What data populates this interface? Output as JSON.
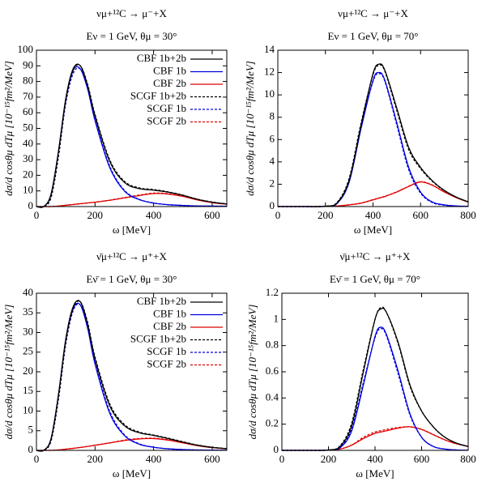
{
  "chart_data": [
    {
      "type": "line",
      "title": "νμ+¹²C → μ⁻+X",
      "subtitle": "Eν = 1 GeV, θμ = 30°",
      "xlabel": "ω [MeV]",
      "ylabel": "dσ/d cosθμ dTμ [10⁻¹⁵fm²/MeV]",
      "x": [
        0,
        25,
        50,
        75,
        100,
        125,
        150,
        175,
        200,
        250,
        300,
        350,
        400,
        450,
        500,
        550,
        600,
        650
      ],
      "xlim": [
        0,
        650
      ],
      "xticks": [
        0,
        200,
        400,
        600
      ],
      "ylim": [
        0,
        100
      ],
      "yticks": [
        0,
        10,
        20,
        30,
        40,
        50,
        60,
        70,
        80,
        90,
        100
      ],
      "legend": "upper right",
      "series": [
        {
          "name": "CBF 1b+2b",
          "color": "#000000",
          "dash": false,
          "values": [
            0,
            0,
            8,
            35,
            69,
            88,
            90,
            77,
            58,
            29,
            15.5,
            11.5,
            10.5,
            9.2,
            7.2,
            4.6,
            2.8,
            1.7
          ]
        },
        {
          "name": "CBF 1b",
          "color": "#0000e0",
          "dash": false,
          "values": [
            0,
            0,
            8,
            35,
            68,
            87,
            88,
            75,
            55,
            25,
            10,
            4.5,
            2.2,
            1.2,
            0.7,
            0.4,
            0.3,
            0.2
          ]
        },
        {
          "name": "CBF 2b",
          "color": "#e00000",
          "dash": false,
          "values": [
            0,
            0,
            0,
            0.3,
            0.8,
            1.3,
            1.8,
            2.3,
            2.8,
            4,
            5.5,
            7,
            8.3,
            8,
            6.5,
            4.2,
            2.5,
            1.5
          ]
        },
        {
          "name": "SCGF 1b+2b",
          "color": "#000000",
          "dash": true,
          "values": [
            0,
            0,
            6,
            32,
            67,
            87,
            90,
            78,
            59,
            30,
            16.2,
            12,
            10.9,
            9.4,
            7.3,
            4.7,
            2.9,
            1.7
          ]
        },
        {
          "name": "SCGF 1b",
          "color": "#0000e0",
          "dash": true,
          "values": [
            0,
            0,
            6,
            32,
            66,
            85,
            88,
            76,
            56,
            26,
            10.5,
            4.7,
            2.3,
            1.2,
            0.7,
            0.4,
            0.3,
            0.2
          ]
        },
        {
          "name": "SCGF 2b",
          "color": "#e00000",
          "dash": true,
          "values": [
            0,
            0,
            0,
            0.3,
            0.8,
            1.3,
            1.8,
            2.3,
            2.8,
            4.1,
            5.7,
            7.3,
            8.6,
            8.2,
            6.6,
            4.3,
            2.6,
            1.5
          ]
        }
      ]
    },
    {
      "type": "line",
      "title": "νμ+¹²C → μ⁻+X",
      "subtitle": "Eν = 1 GeV, θμ = 70°",
      "xlabel": "ω [MeV]",
      "ylabel": "dσ/d cosθμ dTμ [10⁻¹⁵fm²/MeV]",
      "x": [
        0,
        100,
        200,
        250,
        300,
        350,
        400,
        425,
        450,
        500,
        550,
        600,
        650,
        700,
        750,
        800
      ],
      "xlim": [
        0,
        800
      ],
      "xticks": [
        0,
        200,
        400,
        600,
        800
      ],
      "ylim": [
        0,
        14
      ],
      "yticks": [
        0,
        2,
        4,
        6,
        8,
        10,
        12,
        14
      ],
      "series": [
        {
          "color": "#000000",
          "dash": false,
          "values": [
            0,
            0,
            0.03,
            0.35,
            2.35,
            7.3,
            11.9,
            12.75,
            12.2,
            8.8,
            5.3,
            3.5,
            2.3,
            1.45,
            0.85,
            0.42
          ]
        },
        {
          "color": "#0000e0",
          "dash": false,
          "values": [
            0,
            0,
            0.02,
            0.3,
            2.2,
            7,
            11.3,
            12,
            11.3,
            7.5,
            3.5,
            1.3,
            0.4,
            0.15,
            0.05,
            0.02
          ]
        },
        {
          "color": "#e00000",
          "dash": false,
          "values": [
            0,
            0,
            0.01,
            0.05,
            0.15,
            0.3,
            0.6,
            0.75,
            0.9,
            1.3,
            1.8,
            2.2,
            1.9,
            1.3,
            0.8,
            0.4
          ]
        },
        {
          "color": "#000000",
          "dash": true,
          "values": [
            0,
            0,
            0.03,
            0.4,
            2.55,
            7.5,
            11.8,
            12.65,
            12.1,
            8.6,
            5.1,
            3.4,
            2.25,
            1.42,
            0.84,
            0.42
          ]
        },
        {
          "color": "#0000e0",
          "dash": true,
          "values": [
            0,
            0,
            0.02,
            0.35,
            2.4,
            7.2,
            11.2,
            11.9,
            11.2,
            7.3,
            3.3,
            1.2,
            0.35,
            0.12,
            0.04,
            0.02
          ]
        },
        {
          "color": "#e00000",
          "dash": true,
          "values": [
            0,
            0,
            0.01,
            0.05,
            0.16,
            0.32,
            0.62,
            0.77,
            0.92,
            1.32,
            1.82,
            2.22,
            1.92,
            1.32,
            0.81,
            0.4
          ]
        }
      ]
    },
    {
      "type": "line",
      "title": "ν̄μ+¹²C → μ⁺+X",
      "subtitle": "Eν̄ = 1 GeV, θμ = 30°",
      "xlabel": "ω [MeV]",
      "ylabel": "dσ/d cosθμ dTμ [10⁻¹⁵fm²/MeV]",
      "x": [
        0,
        25,
        50,
        75,
        100,
        125,
        150,
        175,
        200,
        250,
        300,
        350,
        400,
        450,
        500,
        550,
        600,
        650
      ],
      "xlim": [
        0,
        650
      ],
      "xticks": [
        0,
        200,
        400,
        600
      ],
      "ylim": [
        0,
        40
      ],
      "yticks": [
        0,
        5,
        10,
        15,
        20,
        25,
        30,
        35,
        40
      ],
      "legend": "upper right",
      "series": [
        {
          "name": "CBF 1b+2b",
          "color": "#000000",
          "dash": false,
          "values": [
            0,
            0,
            3,
            14.1,
            28.3,
            36.5,
            37.8,
            32,
            23.3,
            11.4,
            6.3,
            4.5,
            3.8,
            3,
            2.1,
            1.3,
            0.75,
            0.43
          ]
        },
        {
          "name": "CBF 1b",
          "color": "#0000e0",
          "dash": false,
          "values": [
            0,
            0,
            3,
            14,
            28,
            36,
            37,
            31,
            22,
            9.5,
            3.8,
            1.6,
            0.8,
            0.4,
            0.2,
            0.1,
            0.05,
            0.03
          ]
        },
        {
          "name": "CBF 2b",
          "color": "#e00000",
          "dash": false,
          "values": [
            0,
            0,
            0,
            0.1,
            0.3,
            0.5,
            0.75,
            1,
            1.3,
            1.9,
            2.5,
            2.9,
            3,
            2.6,
            1.9,
            1.2,
            0.7,
            0.4
          ]
        },
        {
          "name": "SCGF 1b+2b",
          "color": "#000000",
          "dash": true,
          "values": [
            0,
            0,
            2.5,
            13.1,
            27.3,
            36,
            37.8,
            32.5,
            23.8,
            11.9,
            6.6,
            4.7,
            3.9,
            3.1,
            2.2,
            1.35,
            0.8,
            0.45
          ]
        },
        {
          "name": "SCGF 1b",
          "color": "#0000e0",
          "dash": true,
          "values": [
            0,
            0,
            2.5,
            13,
            27,
            35.5,
            37,
            31.5,
            22.5,
            10,
            4,
            1.7,
            0.8,
            0.4,
            0.2,
            0.1,
            0.05,
            0.03
          ]
        },
        {
          "name": "SCGF 2b",
          "color": "#e00000",
          "dash": true,
          "values": [
            0,
            0,
            0,
            0.1,
            0.3,
            0.5,
            0.75,
            1,
            1.3,
            1.9,
            2.6,
            3,
            3.1,
            2.7,
            2,
            1.25,
            0.75,
            0.42
          ]
        }
      ]
    },
    {
      "type": "line",
      "title": "ν̄μ+¹²C → μ⁺+X",
      "subtitle": "Eν̄ = 1 GeV, θμ = 70°",
      "xlabel": "ω [MeV]",
      "ylabel": "dσ/d cosθμ dTμ [10⁻¹⁵fm²/MeV]",
      "x": [
        0,
        100,
        200,
        250,
        300,
        350,
        400,
        425,
        450,
        500,
        550,
        600,
        650,
        700,
        750,
        800
      ],
      "xlim": [
        0,
        800
      ],
      "xticks": [
        0,
        200,
        400,
        600,
        800
      ],
      "ylim": [
        0,
        1.2
      ],
      "yticks": [
        0,
        0.2,
        0.4,
        0.6,
        0.8,
        1,
        1.2
      ],
      "series": [
        {
          "color": "#000000",
          "dash": false,
          "values": [
            0,
            0,
            0.003,
            0.03,
            0.19,
            0.6,
            1.0,
            1.08,
            1.05,
            0.82,
            0.5,
            0.3,
            0.18,
            0.1,
            0.055,
            0.03
          ]
        },
        {
          "color": "#0000e0",
          "dash": false,
          "values": [
            0,
            0,
            0.002,
            0.02,
            0.15,
            0.5,
            0.87,
            0.94,
            0.88,
            0.6,
            0.28,
            0.1,
            0.03,
            0.01,
            0.003,
            0.001
          ]
        },
        {
          "color": "#e00000",
          "dash": false,
          "values": [
            0,
            0,
            0.001,
            0.01,
            0.04,
            0.09,
            0.13,
            0.14,
            0.15,
            0.17,
            0.18,
            0.16,
            0.12,
            0.08,
            0.05,
            0.03
          ]
        },
        {
          "color": "#000000",
          "dash": true,
          "values": [
            0,
            0,
            0.003,
            0.035,
            0.21,
            0.62,
            1.0,
            1.09,
            1.05,
            0.81,
            0.49,
            0.3,
            0.18,
            0.1,
            0.055,
            0.03
          ]
        },
        {
          "color": "#0000e0",
          "dash": true,
          "values": [
            0,
            0,
            0.002,
            0.025,
            0.17,
            0.52,
            0.86,
            0.93,
            0.87,
            0.58,
            0.27,
            0.1,
            0.03,
            0.01,
            0.003,
            0.001
          ]
        },
        {
          "color": "#e00000",
          "dash": true,
          "values": [
            0,
            0,
            0.001,
            0.01,
            0.04,
            0.1,
            0.14,
            0.15,
            0.16,
            0.175,
            0.18,
            0.16,
            0.12,
            0.08,
            0.05,
            0.03
          ]
        }
      ]
    }
  ]
}
